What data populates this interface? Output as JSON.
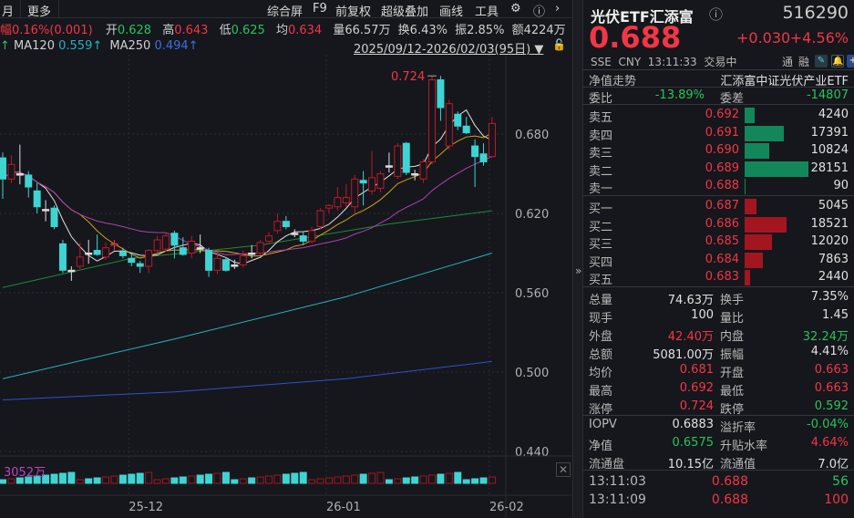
{
  "toolbar": {
    "period": "月",
    "more": "更多",
    "items": [
      "综合屏",
      "F9",
      "前复权",
      "超级叠加",
      "画线",
      "工具"
    ],
    "settings_icon": "gear-icon",
    "help_icon": "help-icon",
    "next_icon": "chevron-right-icon"
  },
  "quote_bar": {
    "change": "幅0.16%(0.001)",
    "open_label": "开",
    "open": "0.628",
    "high_label": "高",
    "high": "0.643",
    "low_label": "低",
    "low": "0.625",
    "avg_label": "均",
    "avg": "0.634",
    "volume": "量66.57万",
    "turnover": "换6.43%",
    "amplitude": "振2.85%",
    "amount": "额4224万"
  },
  "ma_bar": {
    "ma120_label": "MA120",
    "ma120": "0.559↑",
    "ma250_label": "MA250",
    "ma250": "0.494↑",
    "range": "2025/09/12-2026/02/03(95日)"
  },
  "colors": {
    "up": "#f23645",
    "down": "#3fd4d4",
    "ma5": "#e0e0e0",
    "ma10": "#d4a017",
    "ma20": "#e07b1a",
    "ma30": "#b040b0",
    "ma60": "#1f8a3a",
    "ma120": "#2ab0c0",
    "ma250": "#3050d0"
  },
  "chart_data": {
    "type": "candlestick",
    "y_ticks": [
      "0.680",
      "0.620",
      "0.560",
      "0.500",
      "0.440"
    ],
    "ylim": [
      0.423,
      0.781
    ],
    "x_ticks": [
      {
        "label": "25-12",
        "index": 15
      },
      {
        "label": "26-01",
        "index": 38
      },
      {
        "label": "26-02",
        "index": 57
      }
    ],
    "max_label": "0.724",
    "candles": [
      [
        0.662,
        0.666,
        0.631,
        0.646
      ],
      [
        0.646,
        0.664,
        0.643,
        0.657
      ],
      [
        0.65,
        0.672,
        0.642,
        0.65
      ],
      [
        0.649,
        0.652,
        0.632,
        0.64
      ],
      [
        0.637,
        0.643,
        0.62,
        0.625
      ],
      [
        0.623,
        0.63,
        0.614,
        0.623
      ],
      [
        0.624,
        0.626,
        0.608,
        0.61
      ],
      [
        0.597,
        0.6,
        0.575,
        0.577
      ],
      [
        0.577,
        0.58,
        0.569,
        0.577
      ],
      [
        0.58,
        0.598,
        0.578,
        0.587
      ],
      [
        0.59,
        0.6,
        0.582,
        0.59
      ],
      [
        0.592,
        0.604,
        0.588,
        0.589
      ],
      [
        0.587,
        0.598,
        0.585,
        0.594
      ],
      [
        0.596,
        0.6,
        0.592,
        0.597
      ],
      [
        0.591,
        0.594,
        0.586,
        0.588
      ],
      [
        0.586,
        0.59,
        0.58,
        0.583
      ],
      [
        0.582,
        0.584,
        0.575,
        0.58
      ],
      [
        0.58,
        0.593,
        0.575,
        0.592
      ],
      [
        0.592,
        0.603,
        0.59,
        0.6
      ],
      [
        0.593,
        0.606,
        0.591,
        0.603
      ],
      [
        0.605,
        0.607,
        0.586,
        0.596
      ],
      [
        0.594,
        0.602,
        0.588,
        0.589
      ],
      [
        0.59,
        0.603,
        0.586,
        0.599
      ],
      [
        0.594,
        0.604,
        0.59,
        0.594
      ],
      [
        0.592,
        0.594,
        0.572,
        0.577
      ],
      [
        0.577,
        0.59,
        0.574,
        0.586
      ],
      [
        0.585,
        0.587,
        0.576,
        0.577
      ],
      [
        0.581,
        0.585,
        0.578,
        0.581
      ],
      [
        0.581,
        0.592,
        0.579,
        0.588
      ],
      [
        0.59,
        0.596,
        0.586,
        0.59
      ],
      [
        0.59,
        0.6,
        0.588,
        0.598
      ],
      [
        0.599,
        0.606,
        0.597,
        0.603
      ],
      [
        0.607,
        0.62,
        0.605,
        0.614
      ],
      [
        0.614,
        0.618,
        0.608,
        0.61
      ],
      [
        0.605,
        0.608,
        0.602,
        0.605
      ],
      [
        0.603,
        0.606,
        0.596,
        0.599
      ],
      [
        0.599,
        0.61,
        0.597,
        0.607
      ],
      [
        0.61,
        0.624,
        0.608,
        0.622
      ],
      [
        0.624,
        0.627,
        0.62,
        0.626
      ],
      [
        0.625,
        0.64,
        0.622,
        0.632
      ],
      [
        0.628,
        0.642,
        0.625,
        0.632
      ],
      [
        0.625,
        0.649,
        0.62,
        0.646
      ],
      [
        0.645,
        0.652,
        0.626,
        0.643
      ],
      [
        0.637,
        0.667,
        0.634,
        0.647
      ],
      [
        0.639,
        0.652,
        0.636,
        0.65
      ],
      [
        0.656,
        0.666,
        0.651,
        0.656
      ],
      [
        0.648,
        0.673,
        0.646,
        0.671
      ],
      [
        0.673,
        0.674,
        0.649,
        0.651
      ],
      [
        0.65,
        0.653,
        0.645,
        0.65
      ],
      [
        0.646,
        0.661,
        0.643,
        0.659
      ],
      [
        0.659,
        0.724,
        0.657,
        0.721
      ],
      [
        0.721,
        0.724,
        0.69,
        0.7
      ],
      [
        0.671,
        0.706,
        0.668,
        0.703
      ],
      [
        0.695,
        0.697,
        0.683,
        0.686
      ],
      [
        0.686,
        0.693,
        0.68,
        0.681
      ],
      [
        0.671,
        0.676,
        0.64,
        0.663
      ],
      [
        0.665,
        0.673,
        0.656,
        0.659
      ],
      [
        0.663,
        0.693,
        0.662,
        0.688
      ]
    ],
    "ma_long": {
      "ma60": [
        [
          0,
          0.564
        ],
        [
          15,
          0.586
        ],
        [
          30,
          0.596
        ],
        [
          45,
          0.612
        ],
        [
          57,
          0.622
        ]
      ],
      "ma120": [
        [
          0,
          0.495
        ],
        [
          20,
          0.525
        ],
        [
          40,
          0.557
        ],
        [
          57,
          0.59
        ]
      ],
      "ma250": [
        [
          0,
          0.479
        ],
        [
          20,
          0.485
        ],
        [
          40,
          0.495
        ],
        [
          57,
          0.508
        ]
      ]
    },
    "volume_label": "3052万"
  },
  "header": {
    "name": "光伏ETF汇添富",
    "code": "516290",
    "price": "0.688",
    "change": "+0.030",
    "change_pct": "+4.56%",
    "exchange": "SSE",
    "currency": "CNY",
    "time": "13:11:33",
    "status": "交易中",
    "tong": "通",
    "rong": "融"
  },
  "info": {
    "nav_trend": "净值走势",
    "full_name": "汇添富中证光伏产业ETF",
    "wb_label": "委比",
    "wb": "-13.89%",
    "wc_label": "委差",
    "wc": "-14807"
  },
  "asks": [
    {
      "label": "卖五",
      "price": "0.692",
      "vol": "4240",
      "n": 4240
    },
    {
      "label": "卖四",
      "price": "0.691",
      "vol": "17391",
      "n": 17391
    },
    {
      "label": "卖三",
      "price": "0.690",
      "vol": "10824",
      "n": 10824
    },
    {
      "label": "卖二",
      "price": "0.689",
      "vol": "28151",
      "n": 28151
    },
    {
      "label": "卖一",
      "price": "0.688",
      "vol": "90",
      "n": 90
    }
  ],
  "bids": [
    {
      "label": "买一",
      "price": "0.687",
      "vol": "5045",
      "n": 5045
    },
    {
      "label": "买二",
      "price": "0.686",
      "vol": "18521",
      "n": 18521
    },
    {
      "label": "买三",
      "price": "0.685",
      "vol": "12020",
      "n": 12020
    },
    {
      "label": "买四",
      "price": "0.684",
      "vol": "7863",
      "n": 7863
    },
    {
      "label": "买五",
      "price": "0.683",
      "vol": "2440",
      "n": 2440
    }
  ],
  "stats": [
    {
      "l1": "总量",
      "v1": "74.63万",
      "c1": "white",
      "l2": "换手",
      "v2": "7.35%",
      "c2": "white"
    },
    {
      "l1": "现手",
      "v1": "100",
      "c1": "white",
      "l2": "量比",
      "v2": "1.45",
      "c2": "white"
    },
    {
      "l1": "外盘",
      "v1": "42.40万",
      "c1": "red",
      "l2": "内盘",
      "v2": "32.24万",
      "c2": "green"
    },
    {
      "l1": "总额",
      "v1": "5081.00万",
      "c1": "white",
      "l2": "振幅",
      "v2": "4.41%",
      "c2": "white"
    },
    {
      "l1": "均价",
      "v1": "0.681",
      "c1": "red",
      "l2": "开盘",
      "v2": "0.663",
      "c2": "red"
    },
    {
      "l1": "最高",
      "v1": "0.692",
      "c1": "red",
      "l2": "最低",
      "v2": "0.663",
      "c2": "red"
    },
    {
      "l1": "涨停",
      "v1": "0.724",
      "c1": "red",
      "l2": "跌停",
      "v2": "0.592",
      "c2": "green"
    }
  ],
  "etf": [
    {
      "l1": "IOPV",
      "v1": "0.6883",
      "c1": "white",
      "l2": "溢折率",
      "v2": "-0.04%",
      "c2": "green"
    },
    {
      "l1": "净值",
      "v1": "0.6575",
      "c1": "green",
      "l2": "升贴水率",
      "v2": "4.64%",
      "c2": "red"
    },
    {
      "l1": "流通盘",
      "v1": "10.15亿",
      "c1": "white",
      "l2": "流通值",
      "v2": "7.0亿",
      "c2": "white"
    }
  ],
  "ticks": [
    {
      "time": "13:11:03",
      "price": "0.688",
      "vol": "56",
      "vc": "green"
    },
    {
      "time": "13:11:09",
      "price": "0.688",
      "vol": "100",
      "vc": "red"
    }
  ]
}
